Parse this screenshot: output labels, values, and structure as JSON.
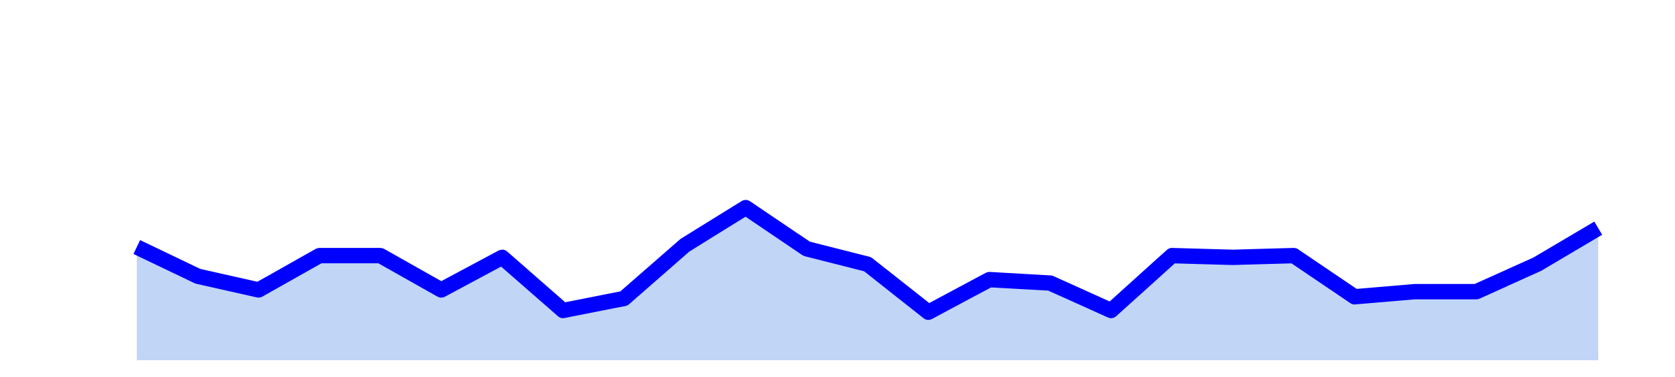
{
  "chart_data": {
    "type": "area",
    "x": [
      1,
      2,
      3,
      4,
      5,
      6,
      7,
      8,
      9,
      10,
      11,
      12,
      13,
      14,
      15,
      16,
      17,
      18,
      19,
      20,
      21,
      22,
      23,
      24,
      25
    ],
    "values": [
      56,
      39,
      31,
      51,
      51,
      31,
      50,
      19,
      26,
      57,
      79,
      55,
      46,
      18,
      37,
      35,
      19,
      51,
      50,
      51,
      27,
      30,
      30,
      46,
      67
    ],
    "ylim": [
      -10,
      200
    ],
    "grid": false,
    "colors": {
      "line": "#0000ff",
      "fill": "#c1d5f6",
      "background": "#ffffff"
    }
  }
}
